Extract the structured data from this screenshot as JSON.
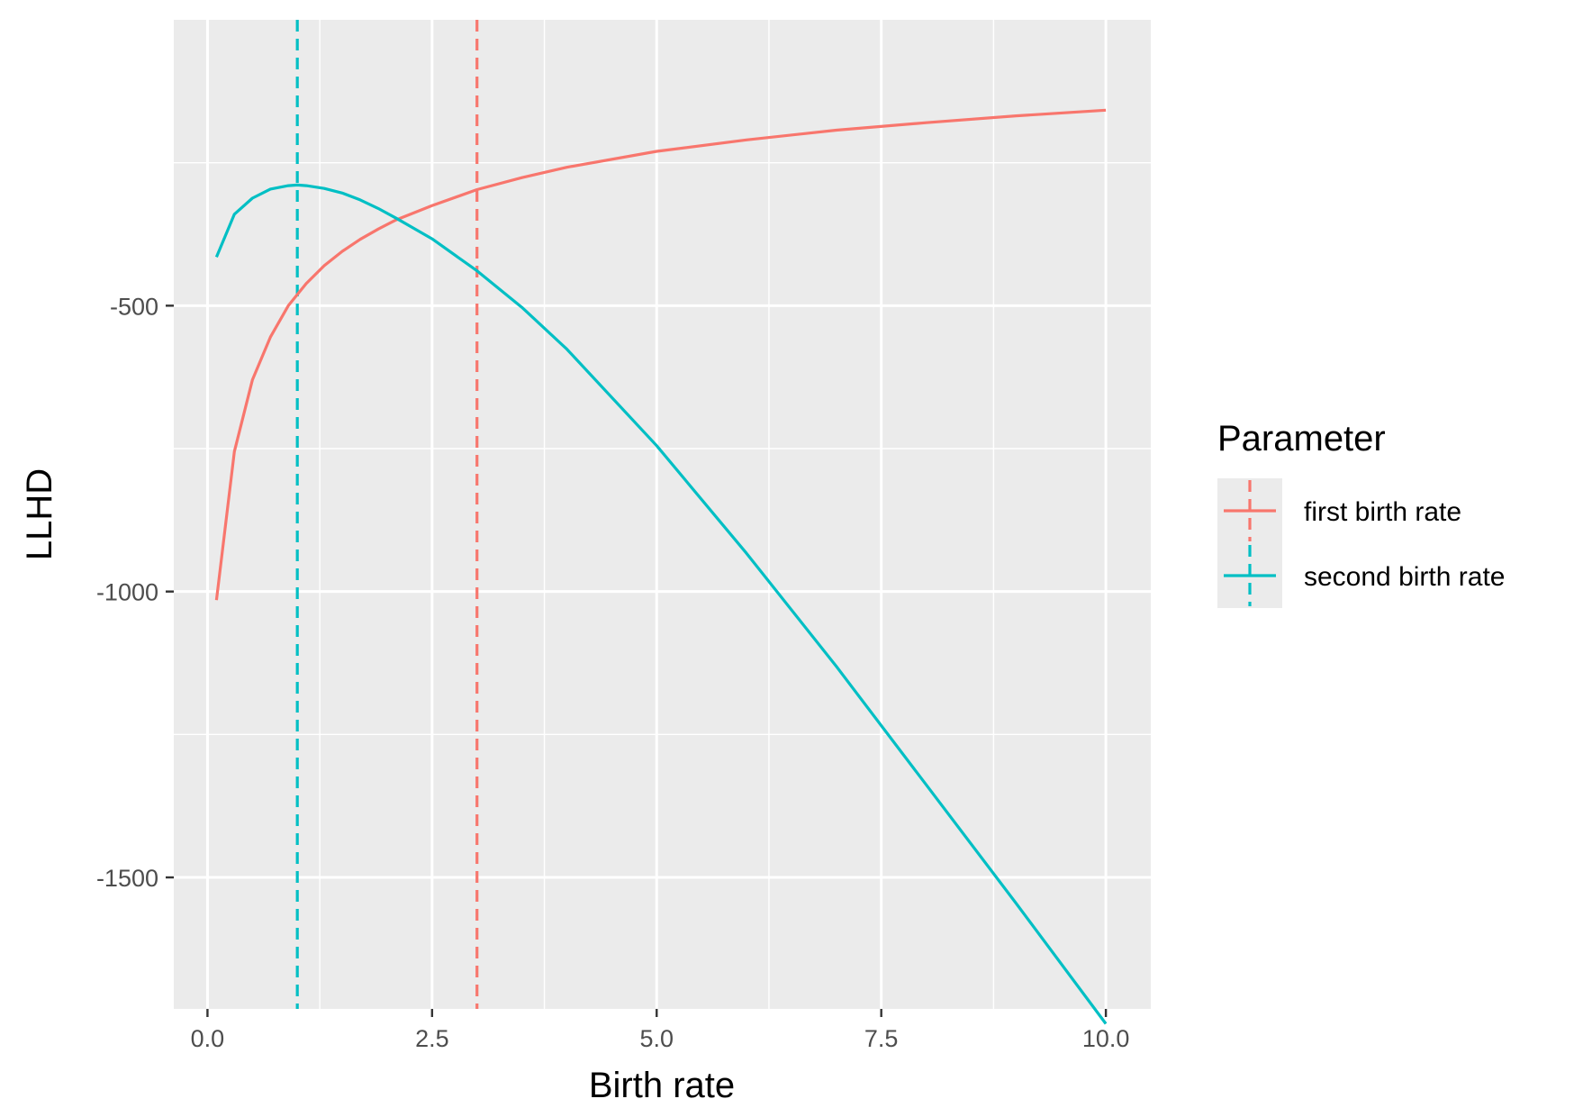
{
  "chart_data": {
    "type": "line",
    "xlabel": "Birth rate",
    "ylabel": "LLHD",
    "xlim": [
      -0.375,
      10.5
    ],
    "ylim": [
      -1730,
      0
    ],
    "x_ticks": [
      0.0,
      2.5,
      5.0,
      7.5,
      10.0
    ],
    "x_tick_labels": [
      "0.0",
      "2.5",
      "5.0",
      "7.5",
      "10.0"
    ],
    "y_ticks": [
      -500,
      -1000,
      -1500
    ],
    "y_tick_labels": [
      "-500",
      "-1000",
      "-1500"
    ],
    "grid": true,
    "background_color": "#ebebeb",
    "legend": {
      "title": "Parameter",
      "position": "right",
      "entries": [
        "first birth rate",
        "second birth rate"
      ]
    },
    "series": [
      {
        "name": "first birth rate",
        "color": "#f8766d",
        "x": [
          0.1,
          0.3,
          0.5,
          0.7,
          0.9,
          1.1,
          1.3,
          1.5,
          1.7,
          1.9,
          2.1,
          2.5,
          3.0,
          3.5,
          4.0,
          5.0,
          6.0,
          7.0,
          8.0,
          9.0,
          10.0
        ],
        "y": [
          -1015,
          -755,
          -630,
          -555,
          -500,
          -461,
          -430,
          -405,
          -384,
          -366,
          -350,
          -325,
          -297,
          -276,
          -258,
          -230,
          -210,
          -193,
          -180,
          -168,
          -158
        ]
      },
      {
        "name": "second birth rate",
        "color": "#00bfc4",
        "x": [
          0.1,
          0.3,
          0.5,
          0.7,
          0.9,
          1.0,
          1.1,
          1.3,
          1.5,
          1.7,
          1.9,
          2.1,
          2.5,
          3.0,
          3.5,
          4.0,
          5.0,
          6.0,
          7.0,
          8.0,
          9.0,
          10.0
        ],
        "y": [
          -415,
          -340,
          -312,
          -296,
          -290,
          -289,
          -290,
          -295,
          -303,
          -315,
          -330,
          -347,
          -383,
          -439,
          -503,
          -576,
          -745,
          -933,
          -1131,
          -1338,
          -1545,
          -1756
        ]
      }
    ],
    "reference_lines": [
      {
        "series": "first birth rate",
        "x": 3.0,
        "color": "#f8766d",
        "style": "dashed"
      },
      {
        "series": "second birth rate",
        "x": 1.0,
        "color": "#00bfc4",
        "style": "dashed"
      }
    ]
  }
}
